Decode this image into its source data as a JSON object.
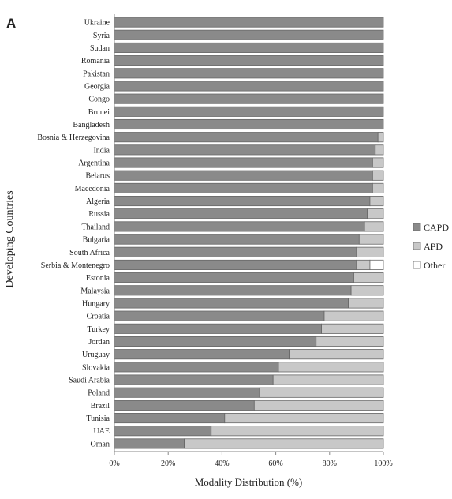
{
  "panel_label": "A",
  "colors": {
    "capd": "#8a8a8a",
    "apd": "#c8c8c8",
    "other": "#ffffff",
    "bar_stroke": "#666666",
    "axis": "#888888"
  },
  "chart_data": {
    "type": "bar",
    "orientation": "horizontal",
    "stacked": true,
    "xlabel": "Modality Distribution (%)",
    "ylabel": "Developing Countries",
    "xlim": [
      0,
      100
    ],
    "xticks": [
      "0%",
      "20%",
      "40%",
      "60%",
      "80%",
      "100%"
    ],
    "grid": false,
    "legend_position": "right",
    "categories": [
      "Ukraine",
      "Syria",
      "Sudan",
      "Romania",
      "Pakistan",
      "Georgia",
      "Congo",
      "Brunei",
      "Bangladesh",
      "Bosnia & Herzegovina",
      "India",
      "Argentina",
      "Belarus",
      "Macedonia",
      "Algeria",
      "Russia",
      "Thailand",
      "Bulgaria",
      "South Africa",
      "Serbia & Montenegro",
      "Estonia",
      "Malaysia",
      "Hungary",
      "Croatia",
      "Turkey",
      "Jordan",
      "Uruguay",
      "Slovakia",
      "Saudi Arabia",
      "Poland",
      "Brazil",
      "Tunisia",
      "UAE",
      "Oman"
    ],
    "series": [
      {
        "name": "CAPD",
        "values": [
          100,
          100,
          100,
          100,
          100,
          100,
          100,
          100,
          100,
          98,
          97,
          96,
          96,
          96,
          95,
          94,
          93,
          91,
          90,
          90,
          89,
          88,
          87,
          78,
          77,
          75,
          65,
          61,
          59,
          54,
          52,
          41,
          36,
          26
        ]
      },
      {
        "name": "APD",
        "values": [
          0,
          0,
          0,
          0,
          0,
          0,
          0,
          0,
          0,
          2,
          3,
          4,
          4,
          4,
          5,
          6,
          7,
          9,
          10,
          5,
          11,
          12,
          13,
          22,
          23,
          25,
          35,
          39,
          41,
          46,
          48,
          59,
          64,
          74
        ]
      },
      {
        "name": "Other",
        "values": [
          0,
          0,
          0,
          0,
          0,
          0,
          0,
          0,
          0,
          0,
          0,
          0,
          0,
          0,
          0,
          0,
          0,
          0,
          0,
          5,
          0,
          0,
          0,
          0,
          0,
          0,
          0,
          0,
          0,
          0,
          0,
          0,
          0,
          0
        ]
      }
    ]
  }
}
